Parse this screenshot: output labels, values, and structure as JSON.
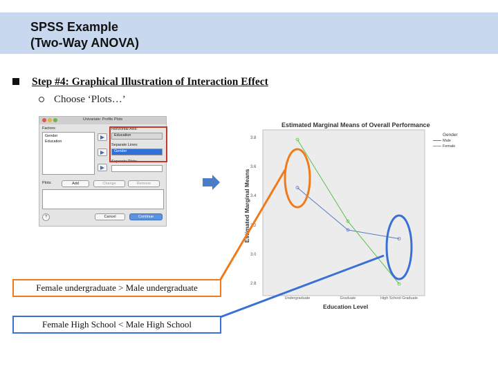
{
  "slide": {
    "title_line1": "SPSS Example",
    "title_line2": "(Two-Way ANOVA)",
    "step": "Step #4: Graphical Illustration of Interaction Effect",
    "sub_bullet": "Choose ‘Plots…’"
  },
  "dialog": {
    "title": "Univariate: Profile Plots",
    "factors_label": "Factors:",
    "factors": [
      "Gender",
      "Education"
    ],
    "horizontal_axis_label": "Horizontal Axis:",
    "horizontal_axis_value": "Education",
    "separate_lines_label": "Separate Lines:",
    "separate_lines_value": "Gender",
    "separate_plots_label": "Separate Plots:",
    "plots_label": "Plots:",
    "add": "Add",
    "change": "Change",
    "remove": "Remove",
    "help": "?",
    "cancel": "Cancel",
    "continue": "Continue"
  },
  "callouts": {
    "orange": "Female undergraduate > Male undergraduate",
    "blue": "Female High School < Male High School"
  },
  "colors": {
    "title_bar": "#c8d9ef",
    "orange": "#f07a1a",
    "blue": "#3a6fd8",
    "male_line": "#5a78c8",
    "female_line": "#5cc04a"
  },
  "chart_data": {
    "type": "line",
    "title": "Estimated Marginal Means of Overall Performance",
    "xlabel": "Education Level",
    "ylabel": "Estimated Marginal Means",
    "categories": [
      "Undergraduate",
      "Graduate",
      "High School Graduate"
    ],
    "ylim": [
      2.75,
      3.87
    ],
    "yticks": [
      "3.8",
      "3.6",
      "3.4",
      "3.2",
      "3.0",
      "2.8"
    ],
    "legend_title": "Gender",
    "legend_position": "top-right",
    "series": [
      {
        "name": "Male",
        "values": [
          3.46,
          3.17,
          3.11
        ],
        "color": "#5a78c8"
      },
      {
        "name": "Female",
        "values": [
          3.79,
          3.23,
          2.8
        ],
        "color": "#5cc04a"
      }
    ]
  }
}
